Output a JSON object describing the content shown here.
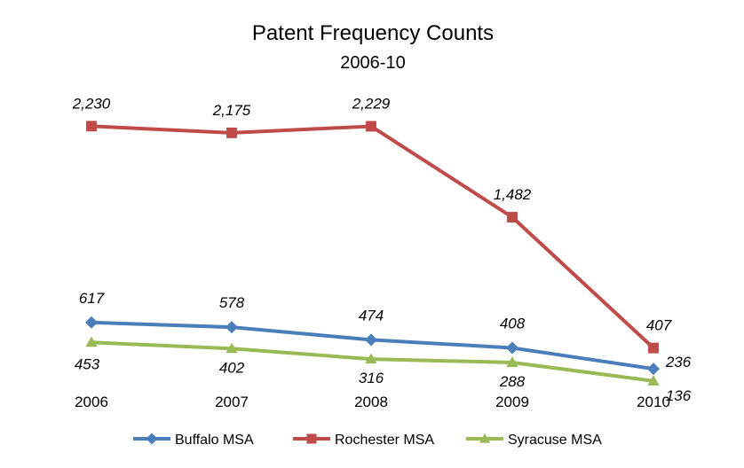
{
  "chart_data": {
    "type": "line",
    "title": "Patent Frequency Counts",
    "subtitle": "2006-10",
    "categories": [
      "2006",
      "2007",
      "2008",
      "2009",
      "2010"
    ],
    "series": [
      {
        "name": "Buffalo MSA",
        "color": "#4a7ebb",
        "marker": "diamond",
        "values": [
          617,
          578,
          474,
          408,
          236
        ],
        "labels": [
          "617",
          "578",
          "474",
          "408",
          "236"
        ]
      },
      {
        "name": "Rochester MSA",
        "color": "#be4b48",
        "marker": "square",
        "values": [
          2230,
          2175,
          2229,
          1482,
          407
        ],
        "labels": [
          "2,230",
          "2,175",
          "2,229",
          "1,482",
          "407"
        ]
      },
      {
        "name": "Syracuse MSA",
        "color": "#98b954",
        "marker": "triangle",
        "values": [
          453,
          402,
          316,
          288,
          136
        ],
        "labels": [
          "453",
          "402",
          "316",
          "288",
          "136"
        ]
      }
    ],
    "legend_position": "bottom",
    "grid": false,
    "y_axis_visible": false
  }
}
